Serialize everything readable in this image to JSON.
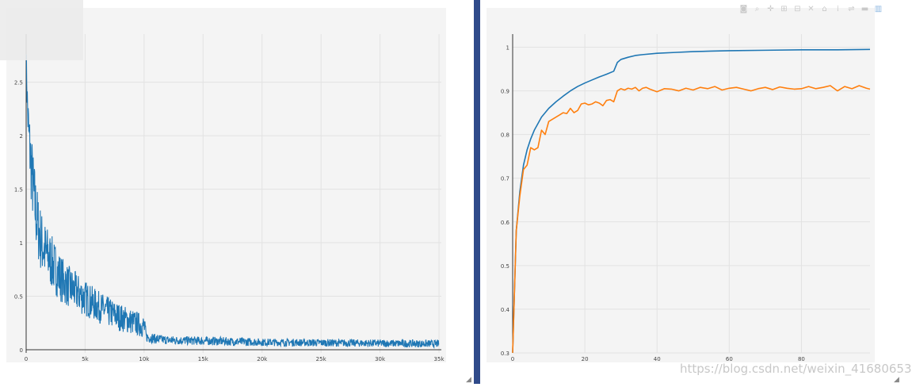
{
  "chart_data": [
    {
      "type": "line",
      "x_ticks": [
        "0",
        "5k",
        "10k",
        "15k",
        "20k",
        "25k",
        "30k",
        "35k"
      ],
      "y_ticks": [
        "0",
        "0.5",
        "1",
        "1.5",
        "2",
        "2.5"
      ],
      "xlim": [
        0,
        35200
      ],
      "ylim": [
        -0.03,
        2.95
      ],
      "grid": true,
      "color": "#1f77b4",
      "series": [
        {
          "x": [
            0,
            100,
            200,
            400,
            600,
            800,
            1000,
            1300,
            1600,
            2000,
            2500,
            3000,
            3500,
            4000,
            4500,
            5000,
            6000,
            7000,
            8000,
            9000,
            10000,
            10200,
            11000,
            12000,
            14000,
            16000,
            18000,
            20000,
            25000,
            30000,
            35000
          ],
          "y": [
            2.8,
            2.3,
            2.05,
            1.75,
            1.5,
            1.3,
            1.15,
            1.0,
            0.92,
            0.85,
            0.75,
            0.66,
            0.6,
            0.56,
            0.52,
            0.48,
            0.41,
            0.35,
            0.3,
            0.26,
            0.22,
            0.12,
            0.1,
            0.09,
            0.085,
            0.08,
            0.075,
            0.07,
            0.065,
            0.06,
            0.055
          ],
          "noise": [
            0.05,
            0.25,
            0.3,
            0.35,
            0.35,
            0.35,
            0.32,
            0.3,
            0.28,
            0.26,
            0.24,
            0.22,
            0.2,
            0.19,
            0.18,
            0.17,
            0.15,
            0.14,
            0.13,
            0.12,
            0.11,
            0.05,
            0.045,
            0.04,
            0.04,
            0.04,
            0.04,
            0.035,
            0.035,
            0.035,
            0.035
          ]
        }
      ]
    },
    {
      "type": "line",
      "x_ticks": [
        "0",
        "20",
        "40",
        "60",
        "80"
      ],
      "y_ticks": [
        "0.3",
        "0.4",
        "0.5",
        "0.6",
        "0.7",
        "0.8",
        "0.9",
        "1"
      ],
      "xlim": [
        0,
        99
      ],
      "ylim": [
        0.3,
        1.03
      ],
      "grid": true,
      "series": [
        {
          "color": "#1f77b4",
          "x": [
            0,
            1,
            2,
            3,
            4,
            5,
            6,
            7,
            8,
            9,
            10,
            12,
            14,
            16,
            18,
            20,
            22,
            24,
            26,
            28,
            29,
            30,
            32,
            34,
            36,
            40,
            45,
            50,
            55,
            60,
            70,
            80,
            90,
            99
          ],
          "y": [
            0.3,
            0.58,
            0.67,
            0.73,
            0.765,
            0.79,
            0.81,
            0.825,
            0.84,
            0.85,
            0.86,
            0.875,
            0.888,
            0.9,
            0.91,
            0.918,
            0.925,
            0.932,
            0.938,
            0.945,
            0.965,
            0.972,
            0.977,
            0.981,
            0.983,
            0.986,
            0.988,
            0.99,
            0.991,
            0.992,
            0.993,
            0.994,
            0.994,
            0.995
          ]
        },
        {
          "color": "#ff7f0e",
          "x": [
            0,
            1,
            2,
            3,
            4,
            5,
            6,
            7,
            8,
            9,
            10,
            11,
            12,
            13,
            14,
            15,
            16,
            17,
            18,
            19,
            20,
            21,
            22,
            23,
            24,
            25,
            26,
            27,
            28,
            29,
            30,
            31,
            32,
            33,
            34,
            35,
            36,
            37,
            38,
            40,
            42,
            44,
            46,
            48,
            50,
            52,
            54,
            56,
            58,
            60,
            62,
            64,
            66,
            68,
            70,
            72,
            74,
            76,
            78,
            80,
            82,
            84,
            86,
            88,
            90,
            92,
            94,
            96,
            98,
            99
          ],
          "y": [
            0.3,
            0.58,
            0.66,
            0.72,
            0.73,
            0.77,
            0.765,
            0.77,
            0.81,
            0.8,
            0.83,
            0.835,
            0.84,
            0.845,
            0.85,
            0.848,
            0.86,
            0.85,
            0.855,
            0.87,
            0.872,
            0.868,
            0.87,
            0.875,
            0.872,
            0.866,
            0.878,
            0.88,
            0.875,
            0.9,
            0.905,
            0.902,
            0.906,
            0.904,
            0.908,
            0.9,
            0.906,
            0.908,
            0.904,
            0.898,
            0.905,
            0.904,
            0.9,
            0.906,
            0.902,
            0.908,
            0.905,
            0.91,
            0.902,
            0.906,
            0.908,
            0.904,
            0.9,
            0.905,
            0.908,
            0.903,
            0.909,
            0.906,
            0.904,
            0.905,
            0.91,
            0.905,
            0.908,
            0.912,
            0.9,
            0.91,
            0.905,
            0.912,
            0.906,
            0.904
          ]
        }
      ]
    }
  ],
  "toolbar": {
    "icons": [
      "camera-icon",
      "zoom-icon",
      "pan-icon",
      "zoom-in-icon",
      "zoom-out-icon",
      "autoscale-icon",
      "home-icon",
      "spike-icon",
      "compare-icon",
      "hover-icon",
      "plotly-logo-icon"
    ]
  },
  "watermark": "https://blog.csdn.net/weixin_41680653"
}
